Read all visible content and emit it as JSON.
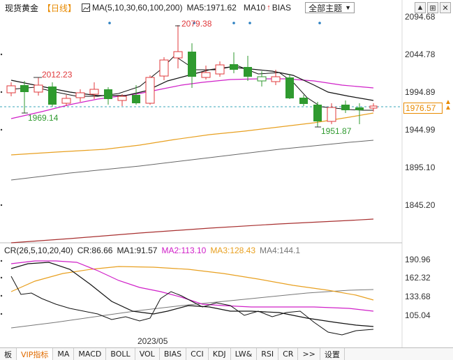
{
  "header": {
    "title": "现货黄金",
    "period": "【日线】",
    "ma_params": "MA(5,10,30,60,100,200)",
    "ma5": "MA5:1971.62",
    "ma10": "MA10",
    "bias": "BIAS",
    "topic_select": "全部主题",
    "buttons": [
      "▲",
      "⊞",
      "✕"
    ]
  },
  "price_axis": {
    "labels": [
      "2094.68",
      "2044.78",
      "1994.89",
      "1976.57",
      "1944.99",
      "1895.10",
      "1845.20"
    ]
  },
  "annotations": {
    "high": "2079.38",
    "mid_high": "2012.23",
    "low1": "1969.14",
    "low2": "1951.87"
  },
  "cr_header": {
    "params": "CR(26,5,10,20,40)",
    "cr": "CR:86.66",
    "ma1": "MA1:91.57",
    "ma2": "MA2:113.10",
    "ma3": "MA3:128.43",
    "ma4": "MA4:144.1"
  },
  "cr_axis": {
    "labels": [
      "190.96",
      "162.32",
      "133.68",
      "105.04"
    ]
  },
  "x_axis": {
    "label": "2023/05"
  },
  "tabs": [
    "板",
    "VIP指标",
    "MA",
    "MACD",
    "BOLL",
    "VOL",
    "BIAS",
    "CCI",
    "KDJ",
    "LW&",
    "RSI",
    "CR",
    ">>",
    "设置"
  ],
  "colors": {
    "up": "#e0383b",
    "down": "#2f9a2f",
    "ma_black": "#111111",
    "ma_magenta": "#d020c8",
    "ma_orange": "#e8a020",
    "ma_gray": "#666666",
    "ma_brown": "#a83030",
    "accent": "#e88a00"
  }
}
